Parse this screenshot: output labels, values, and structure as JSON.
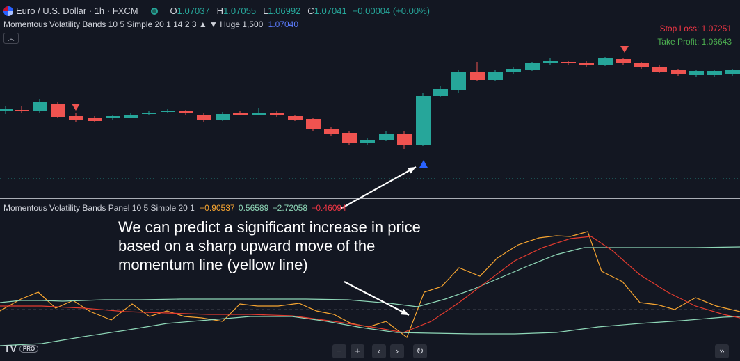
{
  "header": {
    "symbol_title": "Euro / U.S. Dollar · 1h · FXCM",
    "ohlc": [
      {
        "key": "O",
        "value": "1.07037"
      },
      {
        "key": "H",
        "value": "1.07055"
      },
      {
        "key": "L",
        "value": "1.06992"
      },
      {
        "key": "C",
        "value": "1.07041"
      }
    ],
    "change": "+0.00004 (+0.00%)"
  },
  "indicator": {
    "label": "Momentous Volatility Bands 10 5 Simple 20 1 14 2 3 ▲ ▼ Huge 1,500",
    "value": "1.07040",
    "value_color": "#5b7cff",
    "collapse_icon": "chevron-up-icon"
  },
  "signals": {
    "stop_loss": "Stop Loss: 1.07251",
    "take_profit": "Take Profit: 1.06643",
    "stop_loss_color": "#f23645",
    "take_profit_color": "#4caf50"
  },
  "panel": {
    "label": "Momentous Volatility Bands Panel 10 5 Simple 20 1",
    "values": [
      {
        "text": "−0.90537",
        "color": "#f7a531"
      },
      {
        "text": "0.56589",
        "color": "#8fd8b8"
      },
      {
        "text": "−2.72058",
        "color": "#8fd8b8"
      },
      {
        "text": "−0.46094",
        "color": "#f23645"
      }
    ]
  },
  "annotation": {
    "text": "We can predict a significant increase in price based on a sharp upward move of the momentum line (yellow line)"
  },
  "footer": {
    "logo": "TV",
    "badge": "PRO",
    "nav": [
      {
        "icon": "zoom-out-icon",
        "glyph": "−"
      },
      {
        "icon": "zoom-in-icon",
        "glyph": "+"
      },
      {
        "icon": "scroll-left-icon",
        "glyph": "‹"
      },
      {
        "icon": "scroll-right-icon",
        "glyph": "›"
      },
      {
        "icon": "reset-icon",
        "glyph": "↻"
      }
    ],
    "go_to_realtime_glyph": "»"
  },
  "colors": {
    "up": "#26a69a",
    "down": "#ef5350",
    "momentum": "#f7a531",
    "band_upper": "#8fd8b8",
    "band_lower": "#8fd8b8",
    "signal": "#e33b2f",
    "buy_arrow": "#2962ff",
    "sell_arrow": "#ef5350"
  }
}
